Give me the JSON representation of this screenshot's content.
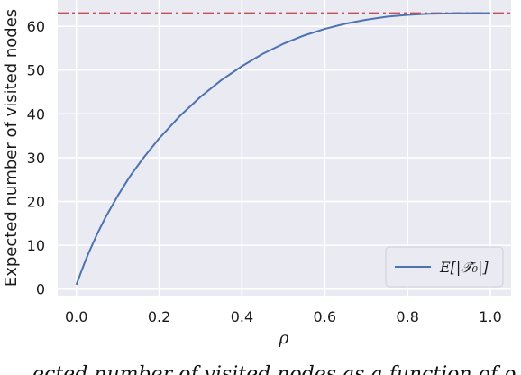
{
  "chart_data": {
    "type": "line",
    "xlabel": "ρ",
    "ylabel": "Expected number of visited nodes",
    "xlim": [
      -0.045,
      1.05
    ],
    "ylim": [
      -1.5,
      66
    ],
    "xticks": [
      "0.0",
      "0.2",
      "0.4",
      "0.6",
      "0.8",
      "1.0"
    ],
    "yticks": [
      "0",
      "10",
      "20",
      "30",
      "40",
      "50",
      "60"
    ],
    "grid": true,
    "legend_position": "bottom-right",
    "series": [
      {
        "name": "E[|𝒯̂₀|]",
        "color": "#4c72b0",
        "x": [
          0.0,
          0.01,
          0.02,
          0.03,
          0.05,
          0.07,
          0.1,
          0.13,
          0.16,
          0.2,
          0.25,
          0.3,
          0.35,
          0.4,
          0.45,
          0.5,
          0.55,
          0.6,
          0.65,
          0.7,
          0.75,
          0.8,
          0.85,
          0.9,
          0.95,
          1.0
        ],
        "y": [
          1.0,
          3.5,
          6.0,
          8.3,
          12.5,
          16.3,
          21.3,
          25.8,
          29.7,
          34.4,
          39.5,
          43.9,
          47.7,
          50.9,
          53.7,
          56.0,
          57.9,
          59.4,
          60.6,
          61.5,
          62.2,
          62.6,
          62.85,
          62.95,
          63.0,
          63.0
        ]
      }
    ],
    "reference_line": {
      "y": 63,
      "color": "#c44e52",
      "style": "dash-dot"
    }
  },
  "caption_fragment": "…ected number of visited nodes as a function of ρ when…"
}
